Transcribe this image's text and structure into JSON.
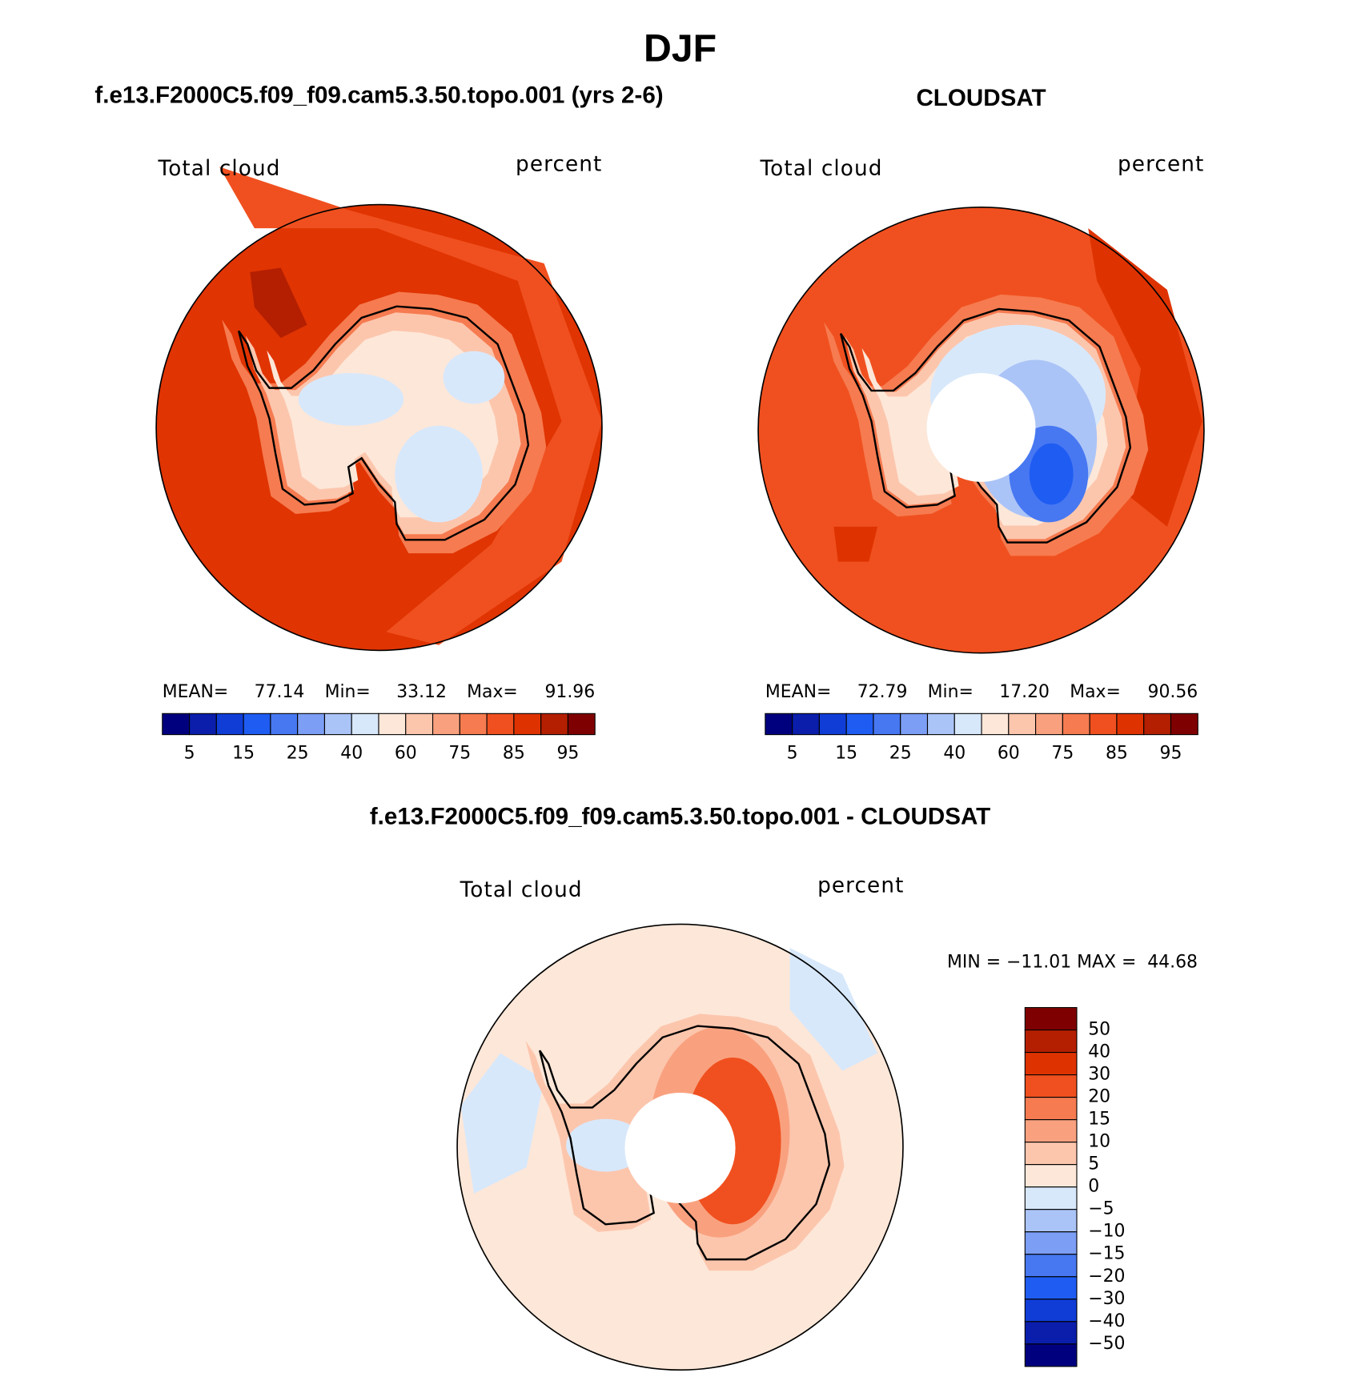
{
  "title": "DJF",
  "panels": [
    {
      "title": "f.e13.F2000C5.f09_f09.cam5.3.50.topo.001 (yrs 2-6)",
      "left_label": "Total cloud",
      "right_label": "percent",
      "stats": [
        "MEAN=",
        "77.14",
        "Min=",
        "33.12",
        "Max=",
        "91.96"
      ]
    },
    {
      "title": "CLOUDSAT",
      "left_label": "Total cloud",
      "right_label": "percent",
      "stats": [
        "MEAN=",
        "72.79",
        "Min=",
        "17.20",
        "Max=",
        "90.56"
      ]
    }
  ],
  "colorbar": {
    "labels": [
      5,
      15,
      25,
      40,
      60,
      75,
      85,
      95
    ],
    "colors": [
      "#00007f",
      "#0a1eab",
      "#0f3dd6",
      "#1f5cf2",
      "#4778f2",
      "#7c9ef5",
      "#abc4f7",
      "#d8e8fb",
      "#fde7d8",
      "#fcc6ad",
      "#f9a17f",
      "#f67b50",
      "#f0501f",
      "#de3300",
      "#b31f00",
      "#7f0000"
    ]
  },
  "difference": {
    "title": "f.e13.F2000C5.f09_f09.cam5.3.50.topo.001 - CLOUDSAT",
    "left_label": "Total cloud",
    "right_label": "percent",
    "stats": "MIN = −11.01 MAX =  44.68",
    "colorbar_labels": [
      "50",
      "40",
      "30",
      "20",
      "15",
      "10",
      "5",
      "0",
      "−5",
      "−10",
      "−15",
      "−20",
      "−30",
      "−40",
      "−50"
    ]
  }
}
